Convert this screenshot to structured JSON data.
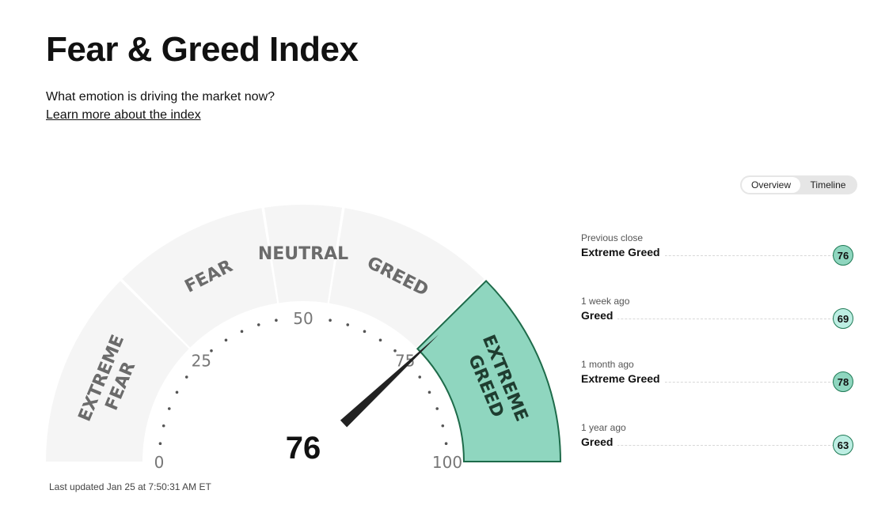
{
  "header": {
    "title": "Fear & Greed Index",
    "subtitle": "What emotion is driving the market now?",
    "learn_link": "Learn more about the index"
  },
  "view_toggle": {
    "options": [
      "Overview",
      "Timeline"
    ],
    "selected": "Overview"
  },
  "gauge": {
    "value": 76,
    "value_label": "76",
    "range": [
      0,
      100
    ],
    "ticks": [
      {
        "value": 0,
        "label": "0"
      },
      {
        "value": 25,
        "label": "25"
      },
      {
        "value": 50,
        "label": "50"
      },
      {
        "value": 75,
        "label": "75"
      },
      {
        "value": 100,
        "label": "100"
      }
    ],
    "segments": [
      {
        "from": 0,
        "to": 25,
        "lines": [
          "EXTREME",
          "FEAR"
        ],
        "active": false
      },
      {
        "from": 25,
        "to": 45,
        "lines": [
          "FEAR"
        ],
        "active": false
      },
      {
        "from": 45,
        "to": 55,
        "lines": [
          "NEUTRAL"
        ],
        "active": false
      },
      {
        "from": 55,
        "to": 75,
        "lines": [
          "GREED"
        ],
        "active": false
      },
      {
        "from": 75,
        "to": 100,
        "lines": [
          "EXTREME",
          "GREED"
        ],
        "active": true
      }
    ],
    "colors": {
      "inactive": "#f5f5f5",
      "active": "#8fd6bf",
      "active_border": "#1e6b4a",
      "label": "#6b6b6b",
      "label_active": "#1f3d30",
      "needle": "#222222"
    }
  },
  "last_updated": "Last updated Jan 25 at 7:50:31 AM ET",
  "history": [
    {
      "label": "Previous close",
      "rating": "Extreme Greed",
      "value": "76",
      "color": "#8fd6bf"
    },
    {
      "label": "1 week ago",
      "rating": "Greed",
      "value": "69",
      "color": "#bdeee3"
    },
    {
      "label": "1 month ago",
      "rating": "Extreme Greed",
      "value": "78",
      "color": "#8fd6bf"
    },
    {
      "label": "1 year ago",
      "rating": "Greed",
      "value": "63",
      "color": "#bdeee3"
    }
  ]
}
